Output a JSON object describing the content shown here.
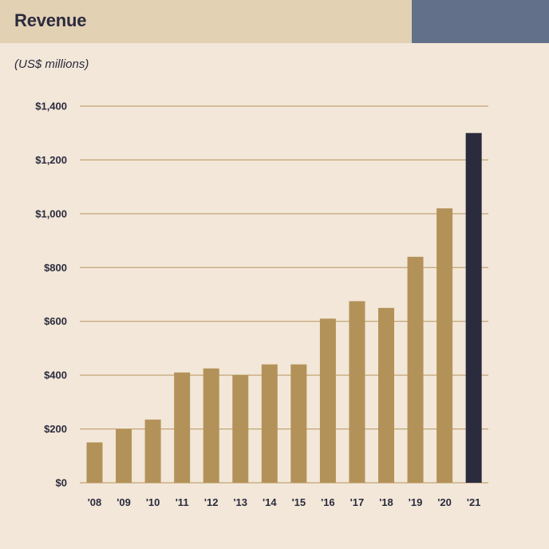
{
  "header": {
    "title": "Revenue",
    "subtitle": "(US$ millions)"
  },
  "colors": {
    "background": "#f2e7d8",
    "header_band": "#e3d1b4",
    "header_accent": "#637089",
    "bar": "#b39259",
    "highlight_bar": "#2a2b3d",
    "gridline": "#b8955e",
    "text": "#2b2b3e"
  },
  "chart_data": {
    "type": "bar",
    "title": "Revenue",
    "subtitle": "(US$ millions)",
    "xlabel": "",
    "ylabel": "",
    "categories": [
      "'08",
      "'09",
      "'10",
      "'11",
      "'12",
      "'13",
      "'14",
      "'15",
      "'16",
      "'17",
      "'18",
      "'19",
      "'20",
      "'21"
    ],
    "values": [
      150,
      200,
      235,
      410,
      425,
      400,
      440,
      440,
      610,
      675,
      650,
      840,
      1020,
      1300
    ],
    "highlight_index": 13,
    "ylim": [
      0,
      1400
    ],
    "yticks": [
      0,
      200,
      400,
      600,
      800,
      1000,
      1200,
      1400
    ],
    "ytick_labels": [
      "$0",
      "$200",
      "$400",
      "$600",
      "$800",
      "$1,000",
      "$1,200",
      "$1,400"
    ],
    "grid": true,
    "legend": "none"
  }
}
